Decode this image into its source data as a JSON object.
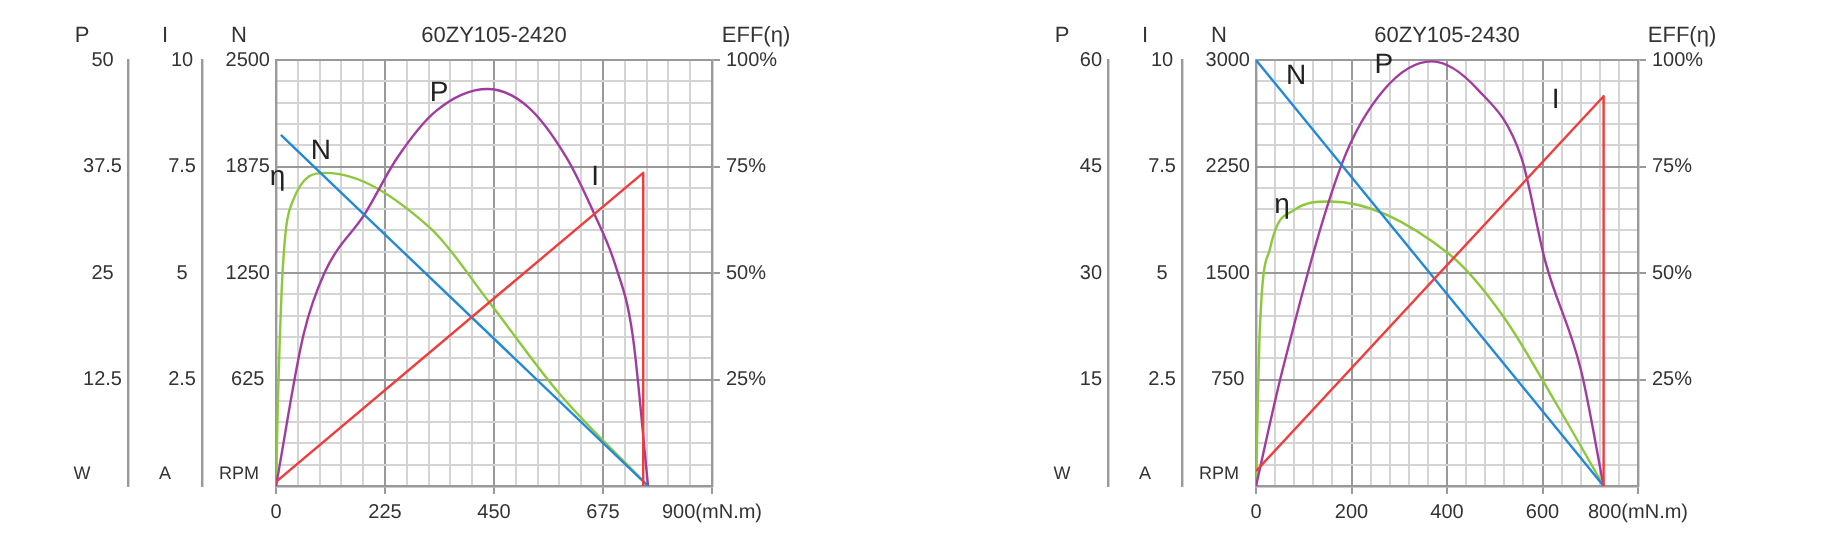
{
  "chart_data": [
    {
      "type": "line",
      "title": "60ZY105-2420",
      "ylabel": "N",
      "y3label": "P",
      "y2label": "EFF(η)",
      "grid": true,
      "xlim": [
        0,
        900
      ],
      "xticks": [
        0,
        {
          "value": 45,
          "label": null
        },
        {
          "value": 90,
          "label": null
        },
        {
          "value": 135,
          "label": null
        },
        {
          "value": 180,
          "label": null
        },
        225,
        {
          "value": 270,
          "label": null
        },
        {
          "value": 315,
          "label": null
        },
        {
          "value": 360,
          "label": null
        },
        {
          "value": 405,
          "label": null
        },
        450,
        {
          "value": 495,
          "label": null
        },
        {
          "value": 540,
          "label": null
        },
        {
          "value": 585,
          "label": null
        },
        {
          "value": 630,
          "label": null
        },
        675,
        {
          "value": 720,
          "label": null
        },
        {
          "value": 765,
          "label": null
        },
        {
          "value": 810,
          "label": null
        },
        {
          "value": 855,
          "label": null
        },
        {
          "value": 900,
          "label": "900(mN.m)"
        }
      ],
      "annotations": [
        "W",
        "RPM"
      ],
      "ylim": [
        0,
        2500
      ],
      "yticks": [
        625,
        1250,
        1875,
        2500
      ],
      "y3lim": [
        0,
        50
      ],
      "y3ticks": [
        12.5,
        25,
        37.5,
        50
      ],
      "y2lim": [
        0,
        100
      ],
      "y2ticks": [
        {
          "value": 0,
          "label": null
        },
        {
          "value": 5,
          "label": null
        },
        {
          "value": 10,
          "label": null
        },
        {
          "value": 15,
          "label": null
        },
        {
          "value": 20,
          "label": null
        },
        {
          "value": 25,
          "label": "25%"
        },
        {
          "value": 30,
          "label": null
        },
        {
          "value": 35,
          "label": null
        },
        {
          "value": 40,
          "label": null
        },
        {
          "value": 45,
          "label": null
        },
        {
          "value": 50,
          "label": "50%"
        },
        {
          "value": 55,
          "label": null
        },
        {
          "value": 60,
          "label": null
        },
        {
          "value": 65,
          "label": null
        },
        {
          "value": 70,
          "label": null
        },
        {
          "value": 75,
          "label": "75%"
        },
        {
          "value": 80,
          "label": null
        },
        {
          "value": 85,
          "label": null
        },
        {
          "value": 90,
          "label": null
        },
        {
          "value": 95,
          "label": null
        },
        {
          "value": 100,
          "label": "100%"
        }
      ],
      "series": [
        {
          "name": "N",
          "color": "#2288d8",
          "x": [
            10,
            768
          ],
          "values": [
            2060,
            0
          ]
        },
        {
          "name": "P",
          "color": "#a03ca0",
          "axis": "y3",
          "x": [
            0,
            57,
            100,
            184,
            250,
            330,
            436,
            520,
            600,
            658,
            700,
            736,
            768
          ],
          "values": [
            0,
            17.8,
            25,
            32,
            38.5,
            44,
            46.6,
            44.5,
            38.5,
            31.8,
            26,
            17.8,
            0
          ]
        },
        {
          "name": "η",
          "color": "#8cc83c",
          "axis": "y2",
          "x": [
            0,
            4,
            14,
            35,
            102,
            318,
            439,
            587,
            768
          ],
          "values": [
            0,
            20,
            51,
            67,
            73.5,
            60.6,
            43.3,
            21.4,
            0
          ]
        }
      ]
    },
    {
      "type": "line",
      "ylabel": "I",
      "tick_labels": "y",
      "annotations": [
        "A"
      ],
      "xlim": [
        0,
        900
      ],
      "ylim": [
        0,
        10
      ],
      "yticks": [
        2.5,
        5,
        7.5,
        10
      ],
      "series": [
        {
          "name": "I",
          "color": "#f03c3c",
          "x": [
            0,
            758,
            758
          ],
          "values": [
            0.1,
            7.35,
            0
          ]
        }
      ]
    },
    {
      "type": "line",
      "title": "60ZY105-2430",
      "ylabel": "N",
      "y3label": "P",
      "y2label": "EFF(η)",
      "grid": true,
      "xlim": [
        0,
        800
      ],
      "xticks": [
        0,
        {
          "value": 40,
          "label": null
        },
        {
          "value": 80,
          "label": null
        },
        {
          "value": 120,
          "label": null
        },
        {
          "value": 160,
          "label": null
        },
        200,
        {
          "value": 240,
          "label": null
        },
        {
          "value": 280,
          "label": null
        },
        {
          "value": 320,
          "label": null
        },
        {
          "value": 360,
          "label": null
        },
        400,
        {
          "value": 440,
          "label": null
        },
        {
          "value": 480,
          "label": null
        },
        {
          "value": 520,
          "label": null
        },
        {
          "value": 560,
          "label": null
        },
        600,
        {
          "value": 640,
          "label": null
        },
        {
          "value": 680,
          "label": null
        },
        {
          "value": 720,
          "label": null
        },
        {
          "value": 760,
          "label": null
        },
        {
          "value": 800,
          "label": "800(mN.m)"
        }
      ],
      "annotations": [
        "W",
        "RPM"
      ],
      "ylim": [
        0,
        3000
      ],
      "yticks": [
        750,
        1500,
        2250,
        3000
      ],
      "y3lim": [
        0,
        60
      ],
      "y3ticks": [
        15,
        30,
        45,
        60
      ],
      "y2lim": [
        0,
        100
      ],
      "y2ticks": [
        {
          "value": 0,
          "label": null
        },
        {
          "value": 5,
          "label": null
        },
        {
          "value": 10,
          "label": null
        },
        {
          "value": 15,
          "label": null
        },
        {
          "value": 20,
          "label": null
        },
        {
          "value": 25,
          "label": "25%"
        },
        {
          "value": 30,
          "label": null
        },
        {
          "value": 35,
          "label": null
        },
        {
          "value": 40,
          "label": null
        },
        {
          "value": 45,
          "label": null
        },
        {
          "value": 50,
          "label": "50%"
        },
        {
          "value": 55,
          "label": null
        },
        {
          "value": 60,
          "label": null
        },
        {
          "value": 65,
          "label": null
        },
        {
          "value": 70,
          "label": null
        },
        {
          "value": 75,
          "label": "75%"
        },
        {
          "value": 80,
          "label": null
        },
        {
          "value": 85,
          "label": null
        },
        {
          "value": 90,
          "label": null
        },
        {
          "value": 95,
          "label": null
        },
        {
          "value": 100,
          "label": "100%"
        }
      ],
      "series": [
        {
          "name": "N",
          "color": "#2288d8",
          "x": [
            0,
            728
          ],
          "values": [
            3000,
            0
          ]
        },
        {
          "name": "P",
          "color": "#a03ca0",
          "axis": "y3",
          "x": [
            0,
            55,
            180,
            268,
            368,
            465,
            556,
            606,
            681,
            728
          ],
          "values": [
            0,
            16.2,
            45.4,
            55.8,
            59.8,
            55.8,
            46.2,
            31.6,
            16.2,
            0
          ]
        },
        {
          "name": "η",
          "color": "#8cc83c",
          "axis": "y2",
          "x": [
            0,
            8,
            30,
            80,
            155,
            405,
            518,
            631,
            728
          ],
          "values": [
            0,
            36.6,
            56,
            64.8,
            66.8,
            54.4,
            39.8,
            18.9,
            0
          ]
        }
      ]
    },
    {
      "type": "line",
      "ylabel": "I",
      "tick_labels": "y",
      "annotations": [
        "A"
      ],
      "xlim": [
        0,
        800
      ],
      "ylim": [
        0,
        10
      ],
      "yticks": [
        2.5,
        5,
        7.5,
        10
      ],
      "series": [
        {
          "name": "I",
          "color": "#f03c3c",
          "x": [
            0,
            728,
            728
          ],
          "values": [
            0.35,
            9.15,
            0
          ]
        }
      ]
    }
  ]
}
